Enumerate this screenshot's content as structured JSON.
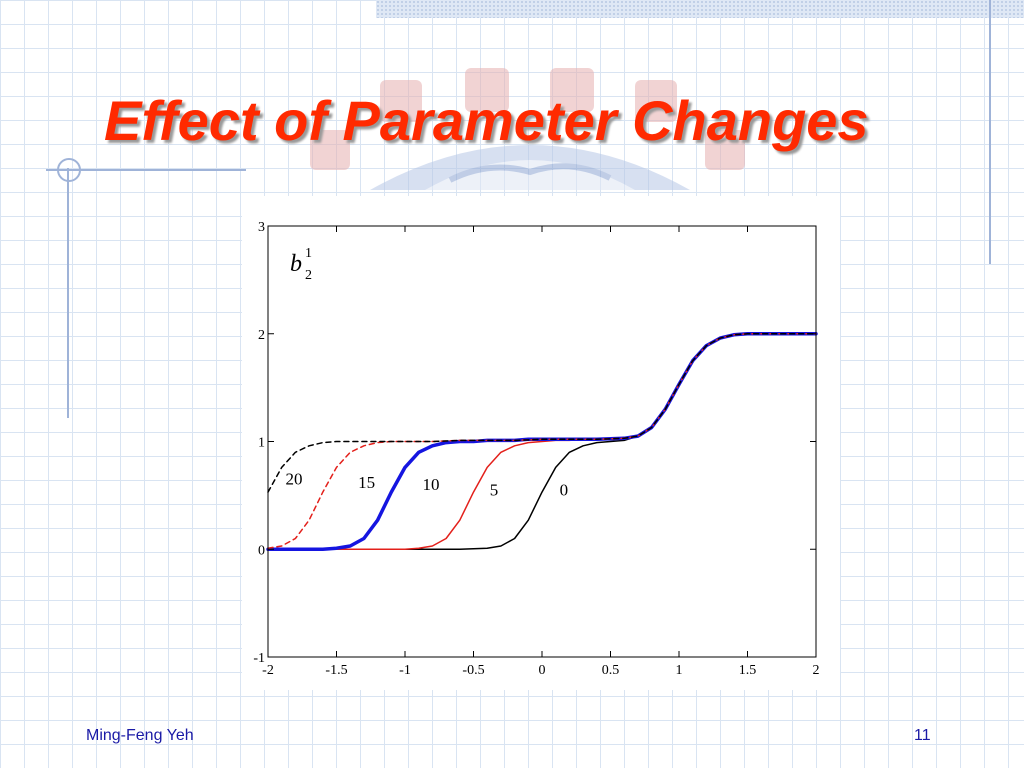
{
  "slide": {
    "title": "Effect of Parameter Changes",
    "author": "Ming-Feng Yeh",
    "page_number": "11",
    "colors": {
      "title": "#ff2a00",
      "footer_text": "#1a1aa6",
      "grid_lines": "#d9e4f2",
      "decor_lines": "#9fb3d8"
    },
    "decorations": [
      "university-seal-watermark-icon",
      "crosshair-circle-icon"
    ]
  },
  "chart_data": {
    "type": "line",
    "title": "",
    "xlabel": "",
    "ylabel_base": "b",
    "ylabel_sub": "2",
    "ylabel_sup": "1",
    "xlim": [
      -2,
      2
    ],
    "ylim": [
      -1,
      3
    ],
    "xticks": [
      "-2",
      "-1.5",
      "-1",
      "-0.5",
      "0",
      "0.5",
      "1",
      "1.5",
      "2"
    ],
    "yticks": [
      "-1",
      "0",
      "1",
      "2",
      "3"
    ],
    "grid": false,
    "series": [
      {
        "name": "0",
        "color": "#000000",
        "style": "solid",
        "width": 1.5,
        "shift": 0,
        "x": [
          -2,
          -1.8,
          -1.6,
          -1.4,
          -1.2,
          -1,
          -0.8,
          -0.6,
          -0.4,
          -0.3,
          -0.2,
          -0.1,
          0,
          0.1,
          0.2,
          0.3,
          0.4,
          0.5,
          0.6,
          0.7,
          0.8,
          0.9,
          1,
          1.1,
          1.2,
          1.3,
          1.4,
          1.5,
          1.6,
          1.8,
          2
        ],
        "y": [
          0,
          0,
          0,
          0,
          0,
          0,
          0,
          0,
          0.01,
          0.03,
          0.1,
          0.27,
          0.53,
          0.76,
          0.9,
          0.96,
          0.99,
          1,
          1.01,
          1.05,
          1.13,
          1.3,
          1.53,
          1.75,
          1.89,
          1.96,
          1.99,
          2,
          2,
          2,
          2
        ]
      },
      {
        "name": "5",
        "color": "#e3201b",
        "style": "solid",
        "width": 1.5,
        "shift": 0.5,
        "x": [
          -2,
          -1.8,
          -1.6,
          -1.4,
          -1.2,
          -1,
          -0.9,
          -0.8,
          -0.7,
          -0.6,
          -0.5,
          -0.4,
          -0.3,
          -0.2,
          -0.1,
          0,
          0.1,
          0.2,
          0.3,
          0.4,
          0.5,
          0.6,
          0.7,
          0.8,
          0.9,
          1,
          1.1,
          1.2,
          1.3,
          1.4,
          1.5,
          1.6,
          1.8,
          2
        ],
        "y": [
          0,
          0,
          0,
          0,
          0,
          0,
          0.01,
          0.03,
          0.1,
          0.27,
          0.53,
          0.76,
          0.9,
          0.96,
          0.99,
          1,
          1.01,
          1.01,
          1.02,
          1.02,
          1.02,
          1.03,
          1.05,
          1.13,
          1.3,
          1.53,
          1.75,
          1.89,
          1.96,
          1.99,
          2,
          2,
          2,
          2
        ]
      },
      {
        "name": "10",
        "color": "#1515e0",
        "style": "solid",
        "width": 3.5,
        "shift": 1.0,
        "x": [
          -2,
          -1.8,
          -1.6,
          -1.5,
          -1.4,
          -1.3,
          -1.2,
          -1.1,
          -1,
          -0.9,
          -0.8,
          -0.7,
          -0.6,
          -0.5,
          -0.4,
          -0.3,
          -0.2,
          -0.1,
          0,
          0.2,
          0.4,
          0.6,
          0.7,
          0.8,
          0.9,
          1,
          1.1,
          1.2,
          1.3,
          1.4,
          1.5,
          1.6,
          1.8,
          2
        ],
        "y": [
          0,
          0,
          0,
          0.01,
          0.03,
          0.1,
          0.27,
          0.53,
          0.76,
          0.9,
          0.96,
          0.99,
          1,
          1,
          1.01,
          1.01,
          1.01,
          1.02,
          1.02,
          1.02,
          1.02,
          1.03,
          1.05,
          1.13,
          1.3,
          1.53,
          1.75,
          1.89,
          1.96,
          1.99,
          2,
          2,
          2,
          2
        ]
      },
      {
        "name": "15",
        "color": "#e3201b",
        "style": "dashed",
        "width": 1.5,
        "shift": 1.5,
        "x": [
          -2,
          -1.9,
          -1.8,
          -1.7,
          -1.6,
          -1.5,
          -1.4,
          -1.3,
          -1.2,
          -1.1,
          -1,
          -0.8,
          -0.6,
          -0.4,
          -0.2,
          0,
          0.2,
          0.4,
          0.6,
          0.7,
          0.8,
          0.9,
          1,
          1.1,
          1.2,
          1.3,
          1.4,
          1.5,
          1.6,
          1.8,
          2
        ],
        "y": [
          0.01,
          0.03,
          0.1,
          0.27,
          0.53,
          0.76,
          0.9,
          0.96,
          0.99,
          1,
          1,
          1,
          1.01,
          1.01,
          1.01,
          1.02,
          1.02,
          1.02,
          1.03,
          1.05,
          1.13,
          1.3,
          1.53,
          1.75,
          1.89,
          1.96,
          1.99,
          2,
          2,
          2,
          2
        ]
      },
      {
        "name": "20",
        "color": "#000000",
        "style": "dashed",
        "width": 1.5,
        "shift": 2.0,
        "x": [
          -2,
          -1.9,
          -1.8,
          -1.7,
          -1.6,
          -1.5,
          -1.4,
          -1.2,
          -1,
          -0.8,
          -0.6,
          -0.4,
          -0.2,
          0,
          0.2,
          0.4,
          0.6,
          0.7,
          0.8,
          0.9,
          1,
          1.1,
          1.2,
          1.3,
          1.4,
          1.5,
          1.6,
          1.8,
          2
        ],
        "y": [
          0.53,
          0.76,
          0.9,
          0.96,
          0.99,
          1,
          1,
          1,
          1,
          1,
          1.01,
          1.01,
          1.01,
          1.02,
          1.02,
          1.02,
          1.03,
          1.05,
          1.13,
          1.3,
          1.53,
          1.75,
          1.89,
          1.96,
          1.99,
          2,
          2,
          2,
          2
        ]
      }
    ],
    "annotations": [
      {
        "text": "20",
        "x": -1.81,
        "y": 0.6
      },
      {
        "text": "15",
        "x": -1.28,
        "y": 0.57
      },
      {
        "text": "10",
        "x": -0.81,
        "y": 0.55
      },
      {
        "text": "5",
        "x": -0.35,
        "y": 0.5
      },
      {
        "text": "0",
        "x": 0.16,
        "y": 0.5
      }
    ]
  }
}
